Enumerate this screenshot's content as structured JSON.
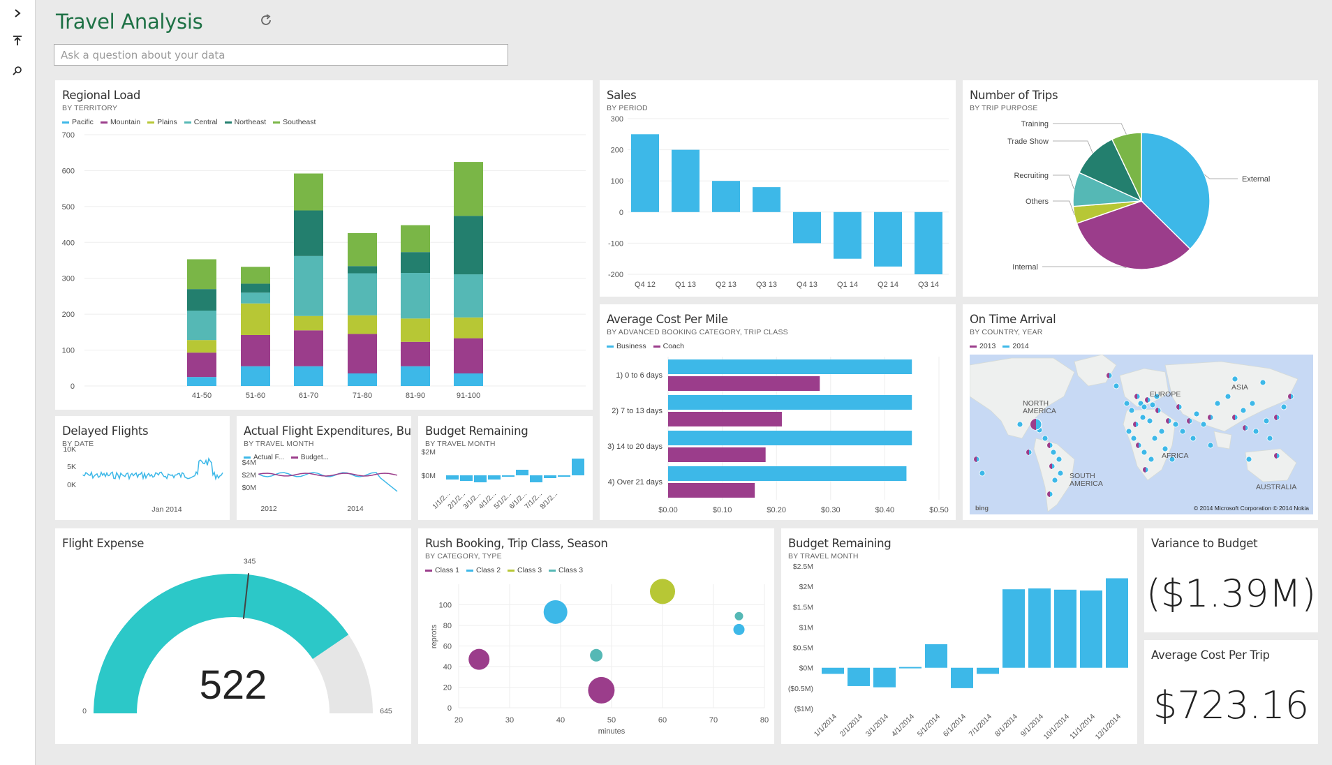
{
  "app": {
    "title": "Travel Analysis",
    "search_placeholder": "Ask a question about your data"
  },
  "sidebar": {
    "icons": [
      "chevron-right-icon",
      "pin-icon",
      "search-icon"
    ]
  },
  "colors": {
    "cyan": "#3db8e8",
    "purple": "#9b3d8b",
    "lime": "#b7c735",
    "teal_light": "#55b8b5",
    "teal_dark": "#237f6e",
    "green": "#7ab647",
    "brand_green": "#1e7145",
    "gauge_fill": "#2cc8c8",
    "gauge_rest": "#e6e6e6"
  },
  "tiles": {
    "regional_load": {
      "title": "Regional Load",
      "subtitle": "BY TERRITORY",
      "legend": [
        "Pacific",
        "Mountain",
        "Plains",
        "Central",
        "Northeast",
        "Southeast"
      ]
    },
    "sales": {
      "title": "Sales",
      "subtitle": "BY PERIOD"
    },
    "trips": {
      "title": "Number of Trips",
      "subtitle": "BY TRIP PURPOSE"
    },
    "cost_per_mile": {
      "title": "Average Cost Per Mile",
      "subtitle": "BY ADVANCED BOOKING CATEGORY, TRIP CLASS",
      "legend": [
        "Business",
        "Coach"
      ]
    },
    "on_time": {
      "title": "On Time Arrival",
      "subtitle": "BY COUNTRY, YEAR",
      "legend": [
        "2013",
        "2014"
      ],
      "map_labels": [
        "NORTH AMERICA",
        "EUROPE",
        "ASIA",
        "AFRICA",
        "SOUTH AMERICA",
        "AUSTRALIA"
      ],
      "map_brand": "bing",
      "copyright": "© 2014 Microsoft Corporation   © 2014 Nokia"
    },
    "delayed": {
      "title": "Delayed Flights",
      "subtitle": "BY DATE",
      "y_ticks": [
        "10K",
        "5K",
        "0K"
      ],
      "x_tick": "Jan 2014"
    },
    "actual_exp": {
      "title": "Actual Flight Expenditures, Bu...",
      "subtitle": "BY TRAVEL MONTH",
      "legend": [
        "Actual F...",
        "Budget..."
      ],
      "y_ticks": [
        "$4M",
        "$2M",
        "$0M"
      ],
      "x_ticks": [
        "2012",
        "2014"
      ]
    },
    "budget_small": {
      "title": "Budget Remaining",
      "subtitle": "BY TRAVEL MONTH",
      "y_ticks": [
        "$2M",
        "$0M"
      ],
      "x_ticks": [
        "1/1/2...",
        "2/1/2...",
        "3/1/2...",
        "4/1/2...",
        "5/1/2...",
        "6/1/2...",
        "7/1/2...",
        "8/1/2..."
      ]
    },
    "flight_expense": {
      "title": "Flight Expense",
      "value": "522",
      "min_label": "0",
      "max_label": "645",
      "target_label": "345",
      "value_num": 522,
      "max_num": 645,
      "target_num": 345
    },
    "rush": {
      "title": "Rush Booking, Trip Class, Season",
      "subtitle": "BY CATEGORY, TYPE",
      "legend": [
        "Class 1",
        "Class 2",
        "Class 3",
        "Class 3"
      ]
    },
    "budget_big": {
      "title": "Budget Remaining",
      "subtitle": "BY TRAVEL MONTH"
    },
    "variance": {
      "title": "Variance to Budget",
      "value": "($1.39M)"
    },
    "avg_trip": {
      "title": "Average Cost Per Trip",
      "value": "$723.16"
    }
  },
  "chart_data": [
    {
      "id": "regional_load",
      "type": "bar",
      "stacked": true,
      "categories": [
        "41-50",
        "51-60",
        "61-70",
        "71-80",
        "81-90",
        "91-100"
      ],
      "series": [
        {
          "name": "Pacific",
          "values": [
            25,
            55,
            55,
            35,
            55,
            35
          ]
        },
        {
          "name": "Mountain",
          "values": [
            68,
            87,
            100,
            110,
            68,
            98
          ]
        },
        {
          "name": "Plains",
          "values": [
            35,
            88,
            40,
            52,
            65,
            58
          ]
        },
        {
          "name": "Central",
          "values": [
            82,
            30,
            167,
            117,
            127,
            120
          ]
        },
        {
          "name": "Northeast",
          "values": [
            60,
            25,
            127,
            20,
            58,
            163
          ]
        },
        {
          "name": "Southeast",
          "values": [
            83,
            47,
            103,
            92,
            75,
            150
          ]
        }
      ],
      "ylim": [
        0,
        700
      ],
      "y_ticks": [
        0,
        100,
        200,
        300,
        400,
        500,
        600,
        700
      ]
    },
    {
      "id": "sales",
      "type": "bar",
      "categories": [
        "Q4 12",
        "Q1 13",
        "Q2 13",
        "Q3 13",
        "Q4 13",
        "Q1 14",
        "Q2 14",
        "Q3 14"
      ],
      "values": [
        250,
        200,
        100,
        80,
        -100,
        -150,
        -175,
        -200
      ],
      "ylim": [
        -200,
        300
      ],
      "y_ticks": [
        -200,
        -100,
        0,
        100,
        200,
        300
      ]
    },
    {
      "id": "trips",
      "type": "pie",
      "labels": [
        "External",
        "Internal",
        "Others",
        "Recruiting",
        "Trade Show",
        "Training"
      ],
      "values": [
        37,
        32,
        4,
        8,
        11,
        7
      ]
    },
    {
      "id": "cost_per_mile",
      "type": "bar",
      "orientation": "horizontal",
      "categories": [
        "1) 0 to 6 days",
        "2) 7 to 13 days",
        "3) 14 to 20 days",
        "4) Over 21 days"
      ],
      "series": [
        {
          "name": "Business",
          "values": [
            0.45,
            0.45,
            0.45,
            0.44
          ]
        },
        {
          "name": "Coach",
          "values": [
            0.28,
            0.21,
            0.18,
            0.16
          ]
        }
      ],
      "xlim": [
        0,
        0.5
      ],
      "x_ticks": [
        "$0.00",
        "$0.10",
        "$0.20",
        "$0.30",
        "$0.40",
        "$0.50"
      ]
    },
    {
      "id": "rush",
      "type": "scatter",
      "xlabel": "minutes",
      "ylabel": "reprots",
      "xlim": [
        20,
        80
      ],
      "ylim": [
        0,
        120
      ],
      "x_ticks": [
        20,
        30,
        40,
        50,
        60,
        70,
        80
      ],
      "y_ticks": [
        0,
        20,
        40,
        60,
        80,
        100
      ],
      "points": [
        {
          "series": "Class 1",
          "x": 24,
          "y": 47,
          "size": 15
        },
        {
          "series": "Class 1",
          "x": 48,
          "y": 17,
          "size": 19
        },
        {
          "series": "Class 2",
          "x": 39,
          "y": 93,
          "size": 17
        },
        {
          "series": "Class 2",
          "x": 75,
          "y": 76,
          "size": 8
        },
        {
          "series": "Class 3",
          "x": 60,
          "y": 113,
          "size": 18
        },
        {
          "series": "Class 3",
          "x": 47,
          "y": 51,
          "size": 9
        },
        {
          "series": "Class 3",
          "x": 75,
          "y": 89,
          "size": 6
        }
      ]
    },
    {
      "id": "budget_big",
      "type": "bar",
      "categories": [
        "1/1/2014",
        "2/1/2014",
        "3/1/2014",
        "4/1/2014",
        "5/1/2014",
        "6/1/2014",
        "7/1/2014",
        "8/1/2014",
        "9/1/2014",
        "10/1/2014",
        "11/1/2014",
        "12/1/2014"
      ],
      "values": [
        -0.15,
        -0.45,
        -0.48,
        0.02,
        0.58,
        -0.5,
        -0.15,
        1.93,
        1.95,
        1.92,
        1.9,
        2.2
      ],
      "ylim": [
        -1,
        2.5
      ],
      "y_ticks": [
        "$2.5M",
        "$2M",
        "$1.5M",
        "$1M",
        "$0.5M",
        "$0M",
        "($0.5M)",
        "($1M)"
      ]
    },
    {
      "id": "budget_small",
      "type": "bar",
      "values": [
        -0.3,
        -0.4,
        -0.5,
        -0.3,
        -0.1,
        0.4,
        -0.5,
        -0.2,
        -0.1,
        1.2
      ],
      "ylim": [
        -1,
        2
      ]
    }
  ]
}
